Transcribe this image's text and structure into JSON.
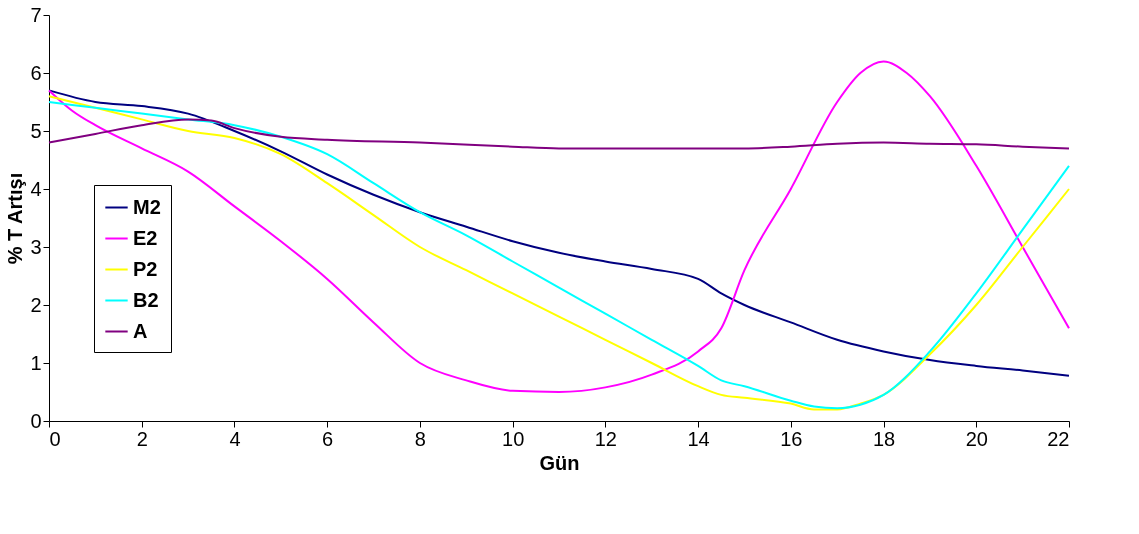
{
  "chart_data": {
    "type": "line",
    "xlabel": "Gün",
    "ylabel": "% T Artışı",
    "xlim": [
      0,
      22
    ],
    "xticks": [
      0,
      2,
      4,
      6,
      8,
      10,
      12,
      14,
      16,
      18,
      20,
      22
    ],
    "ylim": [
      0,
      7
    ],
    "yticks": [
      0,
      1,
      2,
      3,
      4,
      5,
      6,
      7
    ],
    "grid": false,
    "legend": "left",
    "marker": "none",
    "line_style": "solid",
    "series": [
      {
        "name": "M2",
        "color": "#000080",
        "x": [
          0,
          1,
          2,
          3,
          4,
          5,
          6,
          7,
          8,
          9,
          10,
          11,
          12,
          13,
          14,
          14.5,
          15,
          16,
          17,
          18,
          19,
          20,
          21,
          22
        ],
        "values": [
          5.7,
          5.5,
          5.43,
          5.3,
          5.0,
          4.65,
          4.25,
          3.9,
          3.6,
          3.35,
          3.1,
          2.9,
          2.75,
          2.62,
          2.45,
          2.2,
          2.0,
          1.7,
          1.4,
          1.2,
          1.05,
          0.95,
          0.87,
          0.78
        ]
      },
      {
        "name": "E2",
        "color": "#ff00ff",
        "x": [
          0,
          0.5,
          1,
          2,
          3,
          4,
          5,
          6,
          7,
          8,
          9,
          10,
          11,
          12,
          13,
          14,
          14.5,
          15,
          16,
          17,
          17.5,
          18,
          18.5,
          19,
          20,
          21,
          22
        ],
        "values": [
          5.7,
          5.35,
          5.1,
          4.7,
          4.3,
          3.7,
          3.1,
          2.45,
          1.7,
          1.0,
          0.7,
          0.52,
          0.5,
          0.58,
          0.8,
          1.2,
          1.6,
          2.6,
          4.0,
          5.5,
          6.0,
          6.2,
          6.0,
          5.6,
          4.4,
          3.0,
          1.6
        ]
      },
      {
        "name": "P2",
        "color": "#ffff00",
        "x": [
          0,
          1,
          2,
          3,
          4,
          5,
          6,
          7,
          8,
          9,
          10,
          11,
          12,
          13,
          14,
          14.5,
          15,
          16,
          16.5,
          17,
          17.5,
          18,
          19,
          20,
          21,
          22
        ],
        "values": [
          5.6,
          5.4,
          5.2,
          5.0,
          4.88,
          4.6,
          4.1,
          3.55,
          3.0,
          2.6,
          2.2,
          1.8,
          1.4,
          1.0,
          0.6,
          0.45,
          0.4,
          0.3,
          0.2,
          0.2,
          0.3,
          0.45,
          1.15,
          2.0,
          3.0,
          4.0
        ]
      },
      {
        "name": "B2",
        "color": "#00ffff",
        "x": [
          0,
          1,
          2,
          3,
          4,
          5,
          6,
          7,
          8,
          9,
          10,
          11,
          12,
          13,
          14,
          14.5,
          15,
          16,
          16.5,
          17,
          17.5,
          18,
          19,
          20,
          21,
          22
        ],
        "values": [
          5.5,
          5.4,
          5.3,
          5.2,
          5.1,
          4.9,
          4.6,
          4.1,
          3.6,
          3.2,
          2.75,
          2.3,
          1.85,
          1.4,
          0.95,
          0.7,
          0.6,
          0.35,
          0.25,
          0.22,
          0.28,
          0.45,
          1.2,
          2.2,
          3.3,
          4.4
        ]
      },
      {
        "name": "A",
        "color": "#800080",
        "x": [
          0,
          1,
          2,
          3,
          3.5,
          4,
          5,
          6,
          8,
          10,
          11,
          13,
          15,
          16,
          17,
          18,
          19,
          20,
          21,
          22
        ],
        "values": [
          4.8,
          4.95,
          5.1,
          5.2,
          5.18,
          5.05,
          4.9,
          4.85,
          4.8,
          4.73,
          4.7,
          4.7,
          4.7,
          4.73,
          4.78,
          4.8,
          4.78,
          4.77,
          4.73,
          4.7
        ]
      }
    ]
  }
}
